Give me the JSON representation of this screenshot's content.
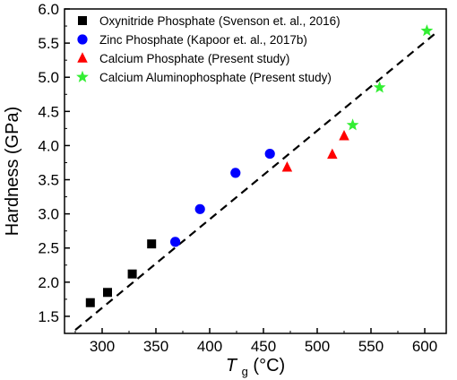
{
  "chart_data": {
    "type": "scatter",
    "xlabel_main": "T",
    "xlabel_sub": "g",
    "xlabel_unit": " (°C)",
    "ylabel": "Hardness (GPa)",
    "xlim": [
      265,
      620
    ],
    "ylim": [
      1.25,
      6.0
    ],
    "xticks": [
      300,
      350,
      400,
      450,
      500,
      550,
      600
    ],
    "yticks": [
      1.5,
      2.0,
      2.5,
      3.0,
      3.5,
      4.0,
      4.5,
      5.0,
      5.5,
      6.0
    ],
    "xtick_labels": [
      "300",
      "350",
      "400",
      "450",
      "500",
      "550",
      "600"
    ],
    "ytick_labels": [
      "1.5",
      "2.0",
      "2.5",
      "3.0",
      "3.5",
      "4.0",
      "4.5",
      "5.0",
      "5.5",
      "6.0"
    ],
    "legend_position": "top-left",
    "series": [
      {
        "name": "Oxynitride Phosphate (Svenson et. al., 2016)",
        "marker": "square",
        "color": "#000000",
        "points": [
          [
            289,
            1.7
          ],
          [
            305,
            1.85
          ],
          [
            328,
            2.12
          ],
          [
            346,
            2.56
          ]
        ]
      },
      {
        "name": "Zinc Phosphate (Kapoor et. al., 2017b)",
        "marker": "circle",
        "color": "#0000ff",
        "points": [
          [
            368,
            2.59
          ],
          [
            391,
            3.07
          ],
          [
            424,
            3.6
          ],
          [
            456,
            3.88
          ]
        ]
      },
      {
        "name": "Calcium Phosphate (Present study)",
        "marker": "triangle",
        "color": "#ff0000",
        "points": [
          [
            472,
            3.68
          ],
          [
            514,
            3.87
          ],
          [
            525,
            4.14
          ]
        ]
      },
      {
        "name": "Calcium Aluminophosphate (Present study)",
        "marker": "star",
        "color": "#33ee33",
        "points": [
          [
            533,
            4.3
          ],
          [
            558,
            4.85
          ],
          [
            602,
            5.68
          ]
        ]
      }
    ],
    "fit_line": {
      "style": "dashed",
      "color": "#000000",
      "points": [
        [
          275,
          1.3
        ],
        [
          612,
          5.67
        ]
      ]
    }
  }
}
